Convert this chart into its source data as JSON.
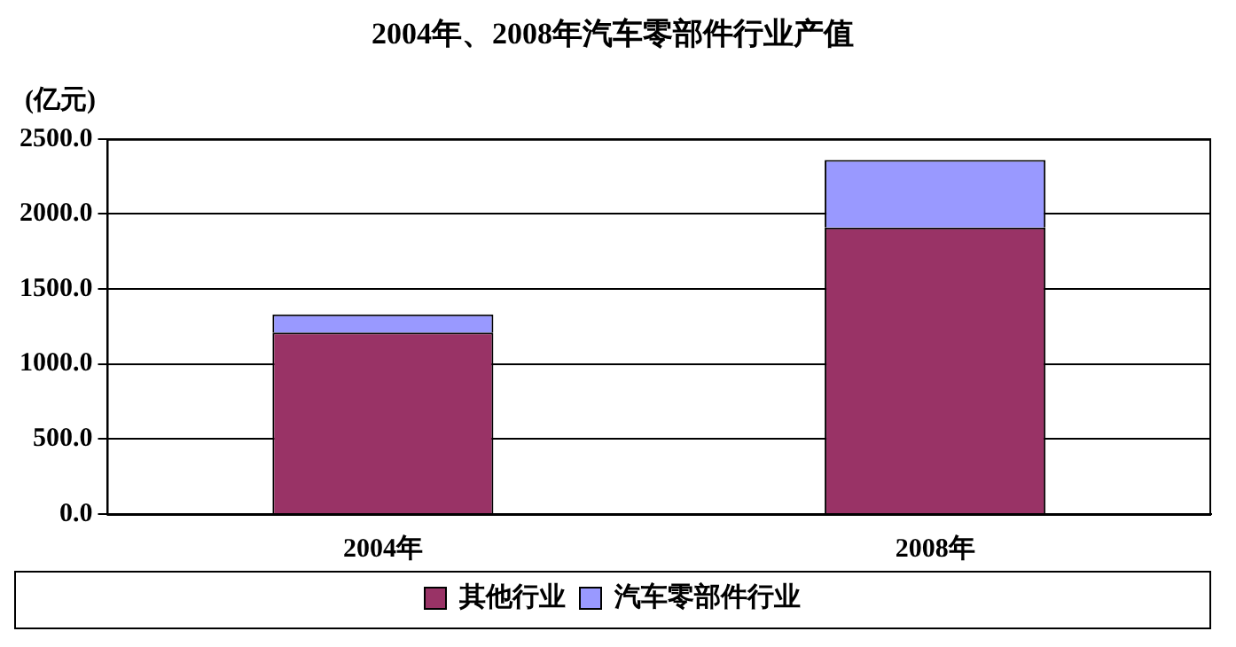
{
  "chart_data": {
    "type": "bar",
    "stacked": true,
    "title": "2004年、2008年汽车零部件行业产值",
    "ylabel": "(亿元)",
    "categories": [
      "2004年",
      "2008年"
    ],
    "series": [
      {
        "name": "其他行业",
        "color": "#993366",
        "values": [
          1210,
          1910
        ]
      },
      {
        "name": "汽车零部件行业",
        "color": "#9999ff",
        "values": [
          120,
          450
        ]
      }
    ],
    "ylim": [
      0,
      2500
    ],
    "yticks": [
      {
        "value": 0,
        "label": "0.0"
      },
      {
        "value": 500,
        "label": "500.0"
      },
      {
        "value": 1000,
        "label": "1000.0"
      },
      {
        "value": 1500,
        "label": "1500.0"
      },
      {
        "value": 2000,
        "label": "2000.0"
      },
      {
        "value": 2500,
        "label": "2500.0"
      }
    ],
    "grid": "y",
    "legend": "bottom"
  }
}
